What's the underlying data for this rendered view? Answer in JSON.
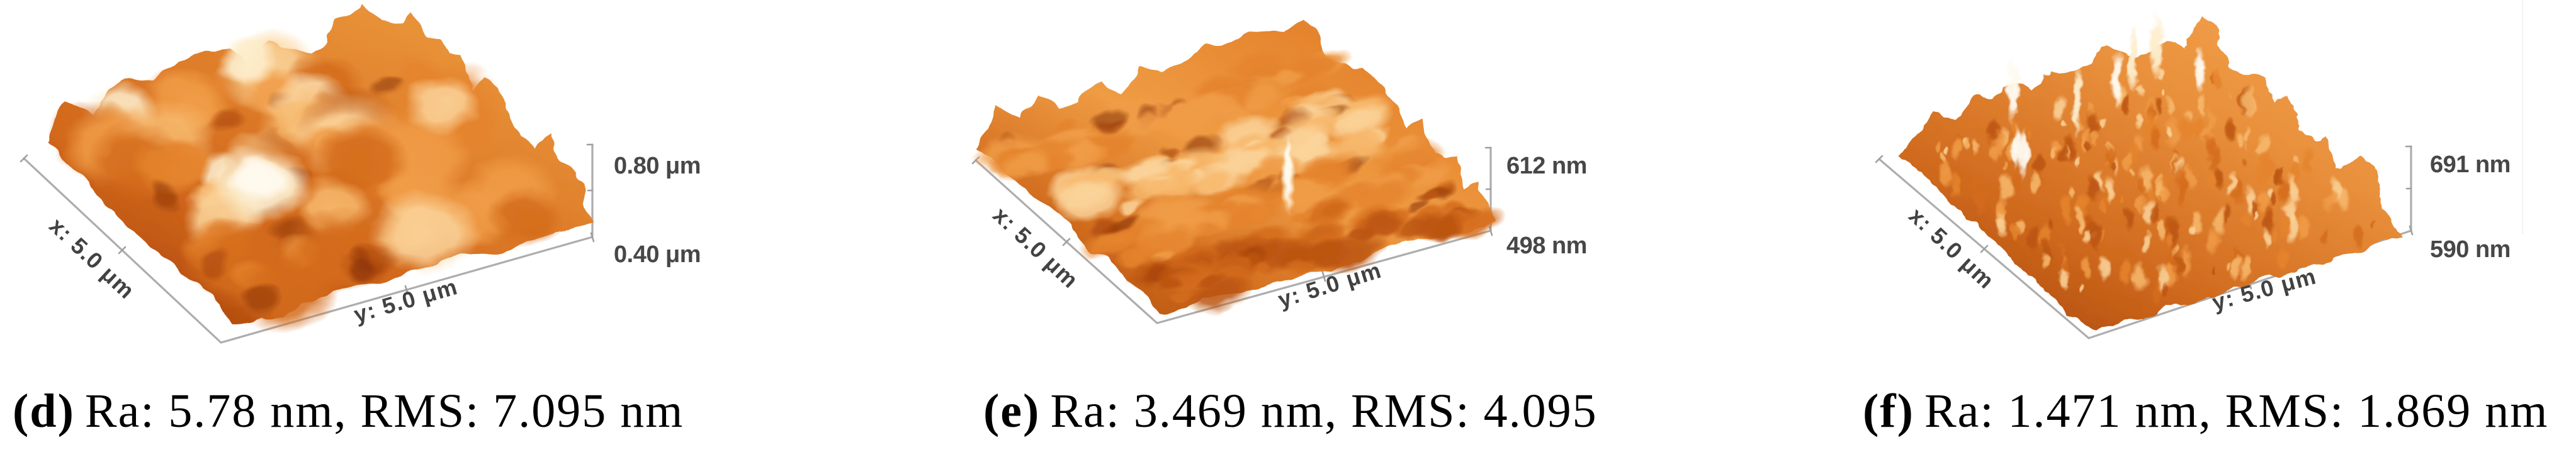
{
  "figure": {
    "panels": [
      {
        "label": "(d)",
        "caption": "Ra: 5.78 nm, RMS: 7.095 nm",
        "ra": "5.78 nm",
        "rms": "7.095 nm",
        "x_axis_label": "x: 5.0 μm",
        "y_axis_label": "y: 5.0 μm",
        "z_axis_labels": [
          "0.80 μm",
          "0.40 μm"
        ],
        "surface_style": "rounded-mounds"
      },
      {
        "label": "(e)",
        "caption": "Ra: 3.469 nm, RMS: 4.095",
        "ra": "3.469 nm",
        "rms": "4.095",
        "x_axis_label": "x: 5.0 μm",
        "y_axis_label": "y: 5.0 μm",
        "z_axis_labels": [
          "612 nm",
          "498 nm"
        ],
        "surface_style": "diagonal-ridges"
      },
      {
        "label": "(f)",
        "caption": "Ra: 1.471 nm, RMS: 1.869 nm",
        "ra": "1.471 nm",
        "rms": "1.869 nm",
        "x_axis_label": "x: 5.0 μm",
        "y_axis_label": "y: 5.0 μm",
        "z_axis_labels": [
          "691 nm",
          "590 nm"
        ],
        "surface_style": "fine-spikes"
      }
    ],
    "colors": {
      "surface_dark": "#7e2a02",
      "surface_mid": "#d96f1f",
      "surface_light": "#f7b96d",
      "surface_highlight": "#fff3dd",
      "axis_line": "#adadad",
      "axis_text": "#474747",
      "caption_text": "#000000"
    }
  }
}
